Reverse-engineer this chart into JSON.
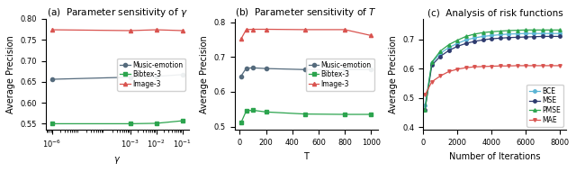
{
  "subplot_a": {
    "title": "(a)  Parameter sensitivity of $\\gamma$",
    "xlabel": "$\\gamma$",
    "ylabel": "Average Precision",
    "xticklabels": [
      "$10^{-6}$",
      "$10^{-3}$",
      "$10^{-2}$",
      "$10^{-1}$"
    ],
    "xvals": [
      1e-06,
      0.001,
      0.01,
      0.1
    ],
    "series": [
      {
        "label": "Music-emotion",
        "color": "#556b7d",
        "marker": "o",
        "markersize": 3,
        "yvals": [
          0.656,
          0.661,
          0.663,
          0.667
        ]
      },
      {
        "label": "Bibtex-3",
        "color": "#2ca44e",
        "marker": "s",
        "markersize": 3,
        "yvals": [
          0.55,
          0.55,
          0.551,
          0.557
        ]
      },
      {
        "label": "Image-3",
        "color": "#d9534f",
        "marker": "^",
        "markersize": 3,
        "yvals": [
          0.774,
          0.772,
          0.774,
          0.772
        ]
      }
    ],
    "ylim": [
      0.535,
      0.8
    ],
    "yticks": [
      0.55,
      0.6,
      0.65,
      0.7,
      0.75,
      0.8
    ]
  },
  "subplot_b": {
    "title": "(b)  Parameter sensitivity of $T$",
    "xlabel": "T",
    "ylabel": "Average Precision",
    "xvals": [
      10,
      50,
      100,
      200,
      500,
      800,
      1000
    ],
    "series": [
      {
        "label": "Music-emotion",
        "color": "#556b7d",
        "marker": "o",
        "markersize": 3,
        "yvals": [
          0.645,
          0.668,
          0.669,
          0.667,
          0.664,
          0.664,
          0.664
        ]
      },
      {
        "label": "Bibtex-3",
        "color": "#2ca44e",
        "marker": "s",
        "markersize": 3,
        "yvals": [
          0.511,
          0.545,
          0.547,
          0.542,
          0.536,
          0.535,
          0.535
        ]
      },
      {
        "label": "Image-3",
        "color": "#d9534f",
        "marker": "^",
        "markersize": 3,
        "yvals": [
          0.752,
          0.779,
          0.78,
          0.78,
          0.779,
          0.779,
          0.762
        ]
      }
    ],
    "ylim": [
      0.49,
      0.81
    ],
    "yticks": [
      0.5,
      0.6,
      0.7,
      0.8
    ]
  },
  "subplot_c": {
    "title": "(c)  Analysis of risk functions",
    "xlabel": "Number of Iterations",
    "ylabel": "Average Precision",
    "xvals": [
      100,
      500,
      1000,
      1500,
      2000,
      2500,
      3000,
      3500,
      4000,
      4500,
      5000,
      5500,
      6000,
      6500,
      7000,
      7500,
      8000
    ],
    "series": [
      {
        "label": "BCE",
        "color": "#5ab4d4",
        "marker": "o",
        "markersize": 2.5,
        "yvals": [
          0.475,
          0.62,
          0.652,
          0.672,
          0.686,
          0.698,
          0.705,
          0.71,
          0.713,
          0.716,
          0.718,
          0.719,
          0.72,
          0.72,
          0.72,
          0.72,
          0.72
        ]
      },
      {
        "label": "MSE",
        "color": "#2d3a6e",
        "marker": "o",
        "markersize": 2.5,
        "yvals": [
          0.46,
          0.612,
          0.642,
          0.662,
          0.676,
          0.686,
          0.693,
          0.698,
          0.702,
          0.704,
          0.706,
          0.707,
          0.708,
          0.709,
          0.71,
          0.71,
          0.71
        ]
      },
      {
        "label": "PMSE",
        "color": "#2ca44e",
        "marker": "^",
        "markersize": 2.5,
        "yvals": [
          0.46,
          0.622,
          0.66,
          0.682,
          0.697,
          0.71,
          0.718,
          0.723,
          0.726,
          0.728,
          0.73,
          0.731,
          0.732,
          0.732,
          0.732,
          0.732,
          0.732
        ]
      },
      {
        "label": "MAE",
        "color": "#d9534f",
        "marker": "v",
        "markersize": 2.5,
        "yvals": [
          0.51,
          0.555,
          0.575,
          0.59,
          0.598,
          0.603,
          0.606,
          0.607,
          0.608,
          0.609,
          0.609,
          0.61,
          0.61,
          0.61,
          0.61,
          0.61,
          0.61
        ]
      }
    ],
    "ylim": [
      0.39,
      0.77
    ],
    "yticks": [
      0.4,
      0.5,
      0.6,
      0.7
    ]
  },
  "caption_fontsize": 7.5,
  "legend_fontsize": 5.5,
  "tick_fontsize": 6,
  "label_fontsize": 7,
  "figure_facecolor": "#ffffff"
}
